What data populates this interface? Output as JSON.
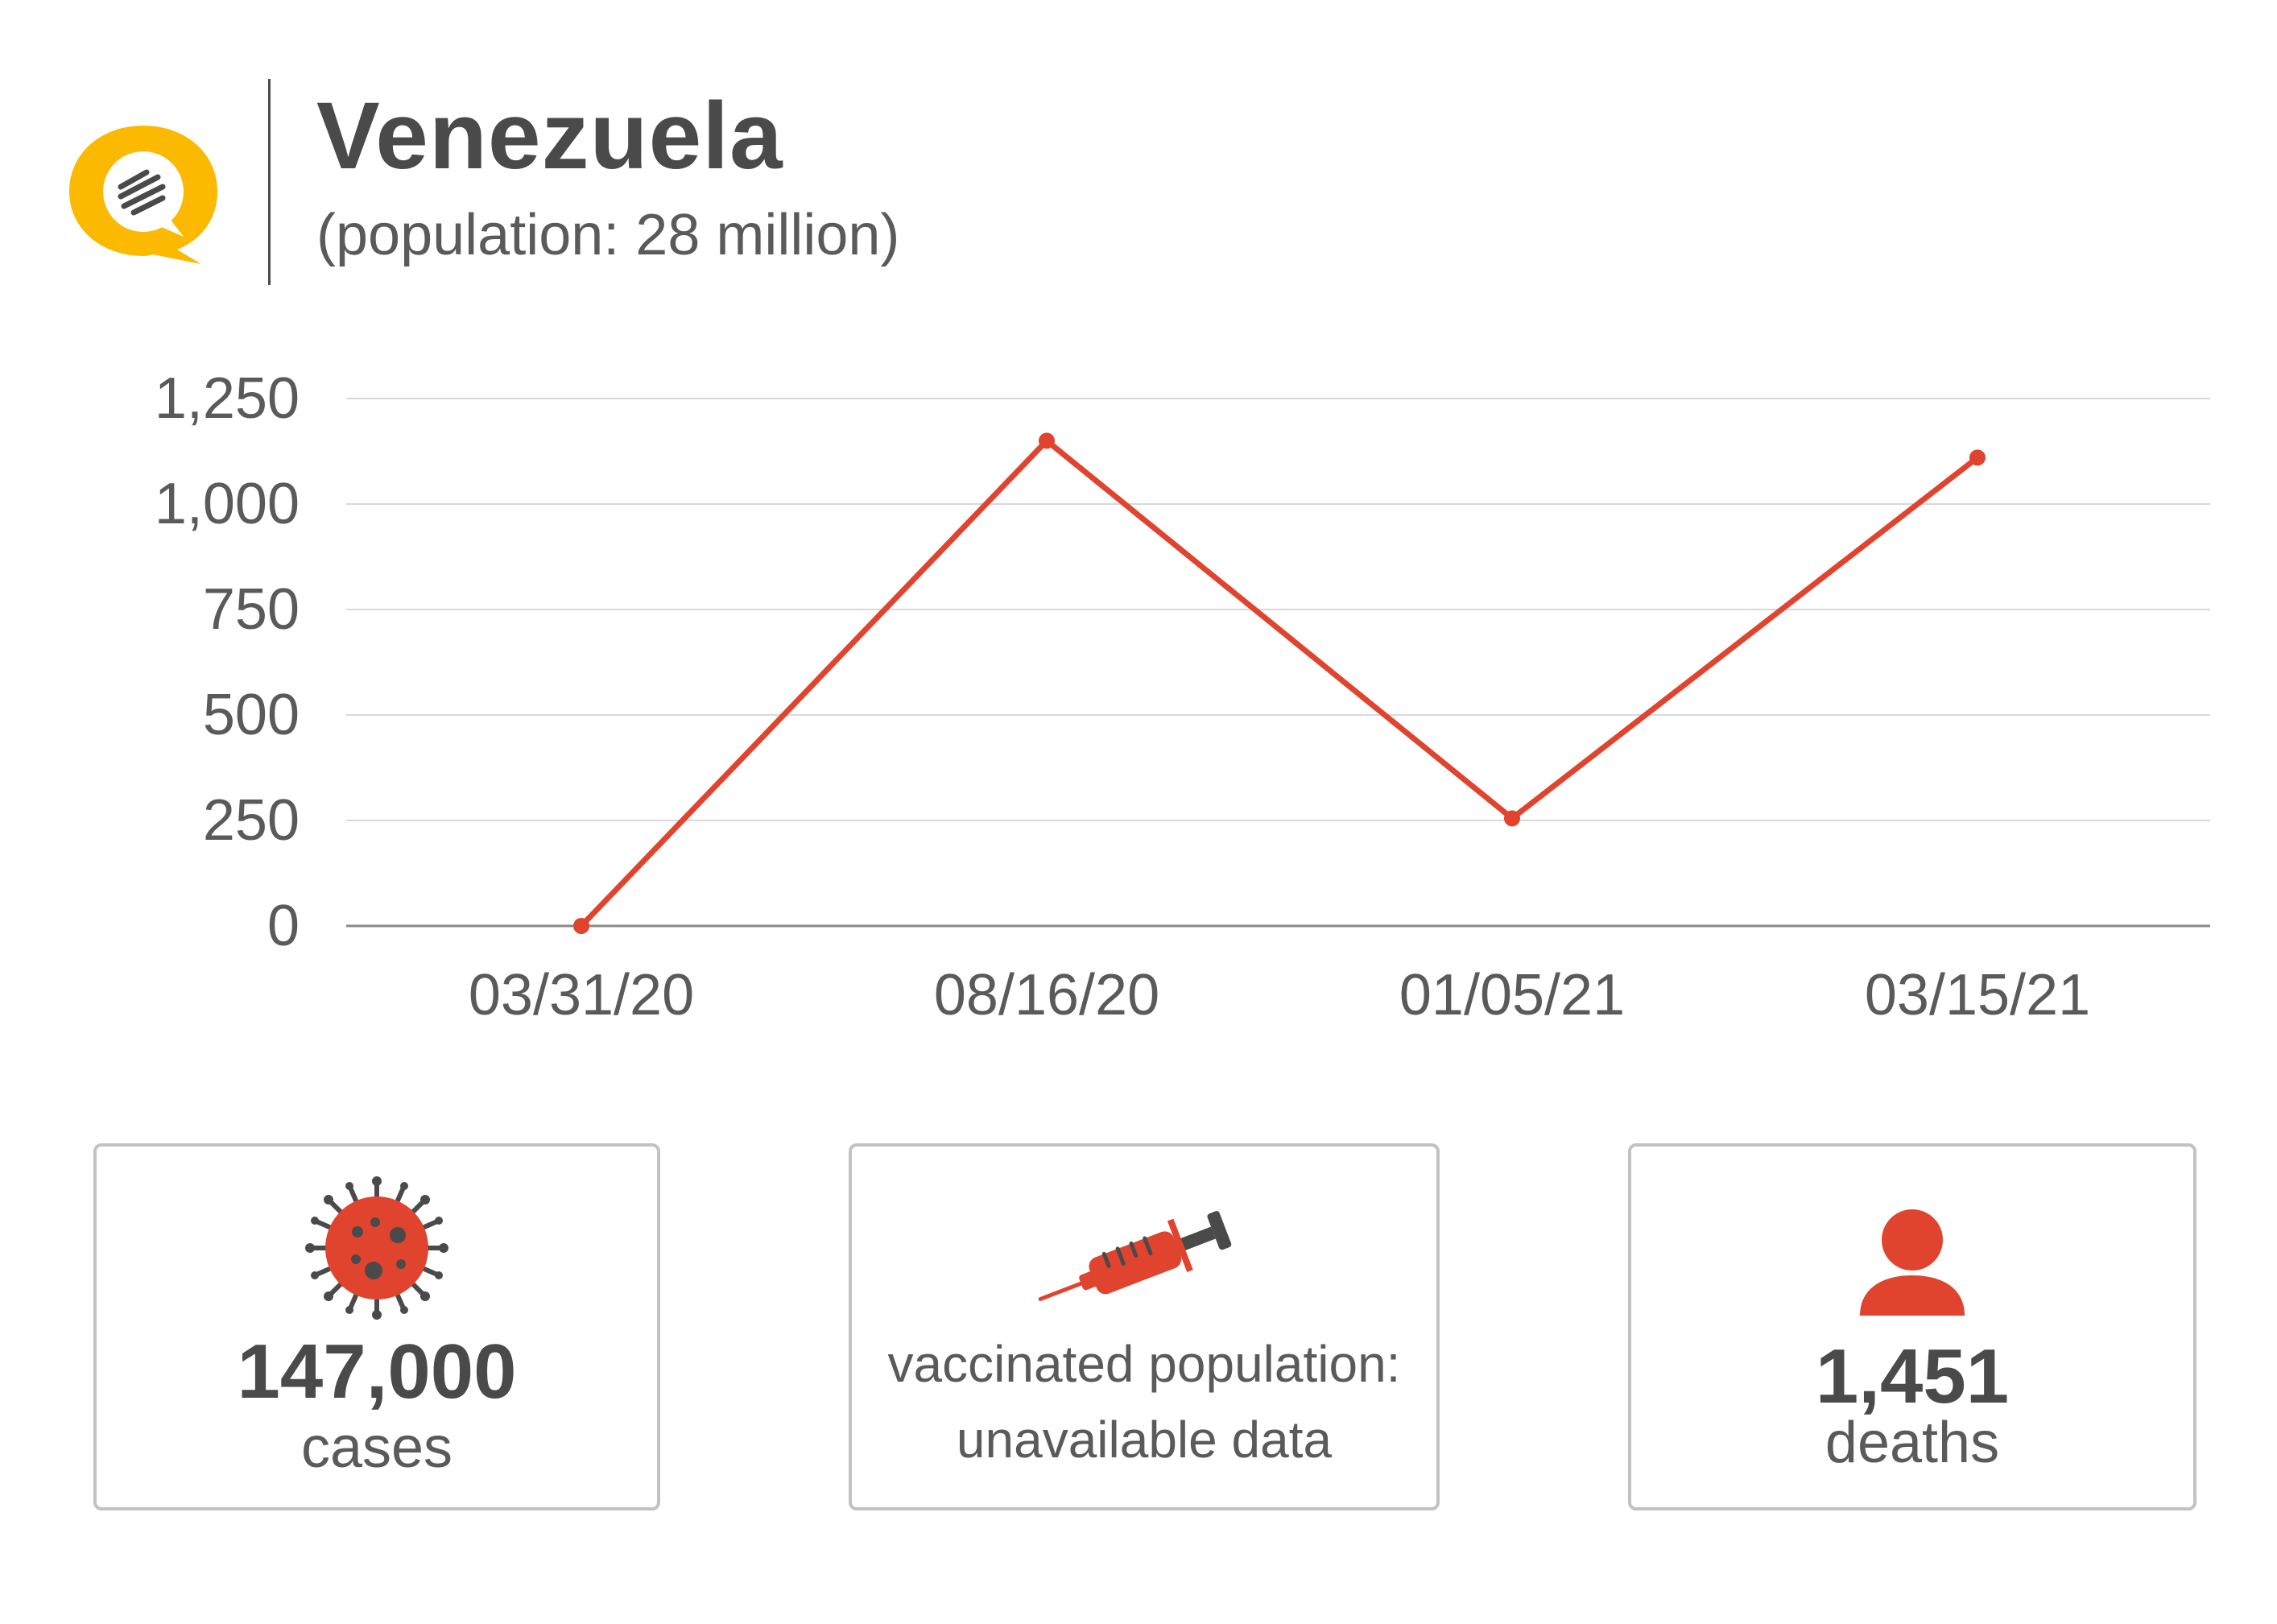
{
  "header": {
    "title": "Venezuela",
    "subtitle": "(population: 28 million)",
    "logo_icon": "speech-bubble-logo-icon"
  },
  "colors": {
    "line": "#e0432e",
    "accent_yellow": "#fbb900",
    "text": "#4a4a4a",
    "grid": "#d9d9d9"
  },
  "chart_data": {
    "type": "line",
    "title": "",
    "xlabel": "",
    "ylabel": "",
    "categories": [
      "03/31/20",
      "08/16/20",
      "01/05/21",
      "03/15/21"
    ],
    "series": [
      {
        "values": [
          0,
          1150,
          255,
          1110
        ]
      }
    ],
    "ylim": [
      0,
      1250
    ],
    "yticks": [
      0,
      250,
      500,
      750,
      1000,
      1250
    ],
    "ytick_labels": [
      "0",
      "250",
      "500",
      "750",
      "1,000",
      "1,250"
    ],
    "grid": true
  },
  "stats": {
    "cases": {
      "value": "147,000",
      "label": "cases",
      "icon": "virus-icon"
    },
    "vaccinated": {
      "line1": "vaccinated population:",
      "line2": "unavailable data",
      "icon": "syringe-icon"
    },
    "deaths": {
      "value": "1,451",
      "label": "deaths",
      "icon": "person-icon"
    }
  }
}
